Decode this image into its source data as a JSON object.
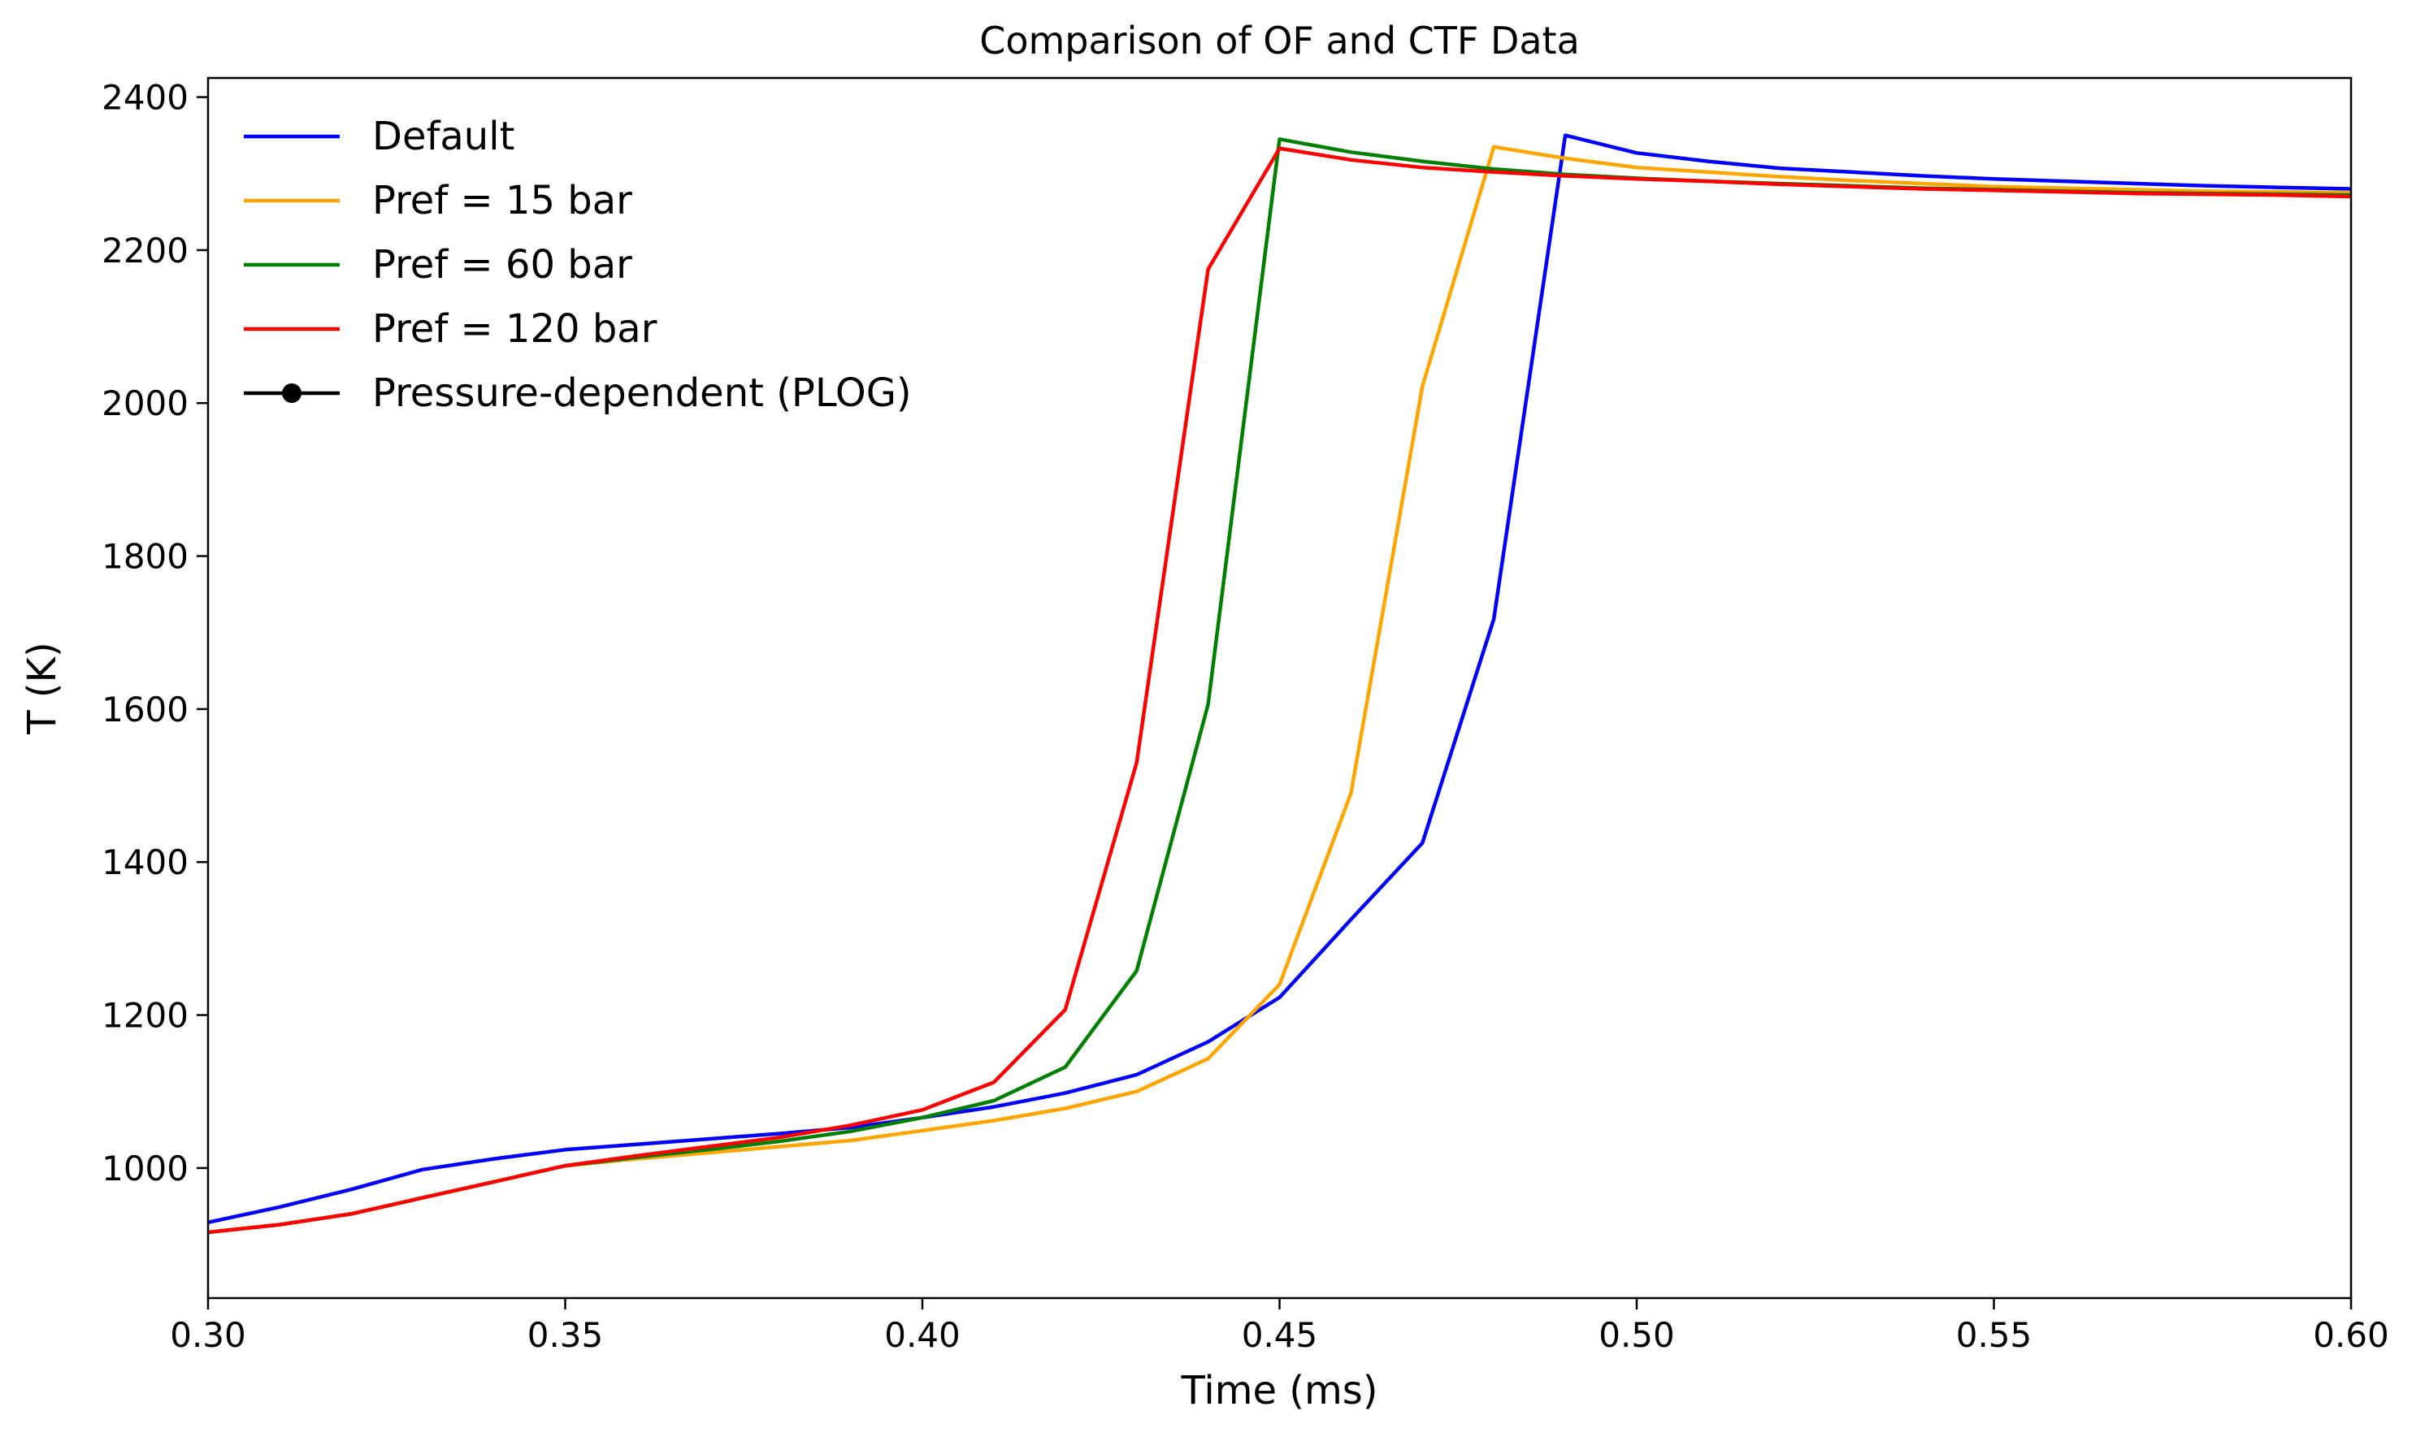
{
  "chart_data": {
    "type": "line",
    "title": "Comparison of OF and CTF Data",
    "xlabel": "Time (ms)",
    "ylabel": "T (K)",
    "xlim": [
      0.3,
      0.6
    ],
    "ylim": [
      830,
      2425
    ],
    "xticks": [
      0.3,
      0.35,
      0.4,
      0.45,
      0.5,
      0.55,
      0.6
    ],
    "xtick_labels": [
      "0.30",
      "0.35",
      "0.40",
      "0.45",
      "0.50",
      "0.55",
      "0.60"
    ],
    "yticks": [
      1000,
      1200,
      1400,
      1600,
      1800,
      2000,
      2200,
      2400
    ],
    "ytick_labels": [
      "1000",
      "1200",
      "1400",
      "1600",
      "1800",
      "2000",
      "2200",
      "2400"
    ],
    "grid": false,
    "legend_position": "top-left",
    "series": [
      {
        "name": "Default",
        "color": "#0000ff",
        "x": [
          0.3,
          0.31,
          0.32,
          0.33,
          0.34,
          0.35,
          0.36,
          0.37,
          0.38,
          0.39,
          0.4,
          0.41,
          0.42,
          0.43,
          0.44,
          0.45,
          0.46,
          0.47,
          0.48,
          0.49,
          0.5,
          0.51,
          0.52,
          0.53,
          0.54,
          0.55,
          0.56,
          0.57,
          0.58,
          0.59,
          0.6
        ],
        "y": [
          929,
          949,
          972,
          998,
          1012,
          1024,
          1031,
          1038,
          1045,
          1053,
          1066,
          1080,
          1098,
          1122,
          1165,
          1223,
          1325,
          1425,
          1718,
          2350,
          2327,
          2316,
          2307,
          2302,
          2297,
          2293,
          2290,
          2287,
          2284,
          2282,
          2280
        ]
      },
      {
        "name": "Pref = 15 bar",
        "color": "#ffa500",
        "x": [
          0.3,
          0.31,
          0.32,
          0.33,
          0.34,
          0.35,
          0.36,
          0.37,
          0.38,
          0.39,
          0.4,
          0.41,
          0.42,
          0.43,
          0.44,
          0.45,
          0.46,
          0.47,
          0.48,
          0.49,
          0.5,
          0.51,
          0.52,
          0.53,
          0.54,
          0.55,
          0.56,
          0.57,
          0.58,
          0.59,
          0.6
        ],
        "y": [
          916,
          926,
          940,
          961,
          982,
          1003,
          1012,
          1020,
          1028,
          1036,
          1049,
          1062,
          1078,
          1100,
          1143,
          1240,
          1490,
          2022,
          2335,
          2320,
          2308,
          2302,
          2296,
          2291,
          2287,
          2283,
          2281,
          2279,
          2277,
          2276,
          2275
        ]
      },
      {
        "name": "Pref = 60 bar",
        "color": "#008000",
        "x": [
          0.3,
          0.31,
          0.32,
          0.33,
          0.34,
          0.35,
          0.36,
          0.37,
          0.38,
          0.39,
          0.4,
          0.41,
          0.42,
          0.43,
          0.44,
          0.45,
          0.46,
          0.47,
          0.48,
          0.49,
          0.5,
          0.51,
          0.52,
          0.53,
          0.54,
          0.55,
          0.56,
          0.57,
          0.58,
          0.59,
          0.6
        ],
        "y": [
          916,
          926,
          940,
          961,
          982,
          1003,
          1014,
          1024,
          1035,
          1048,
          1066,
          1088,
          1132,
          1258,
          1606,
          2345,
          2328,
          2316,
          2306,
          2299,
          2294,
          2290,
          2287,
          2284,
          2281,
          2279,
          2277,
          2275,
          2274,
          2273,
          2272
        ]
      },
      {
        "name": "Pref = 120 bar",
        "color": "#ff0000",
        "x": [
          0.3,
          0.31,
          0.32,
          0.33,
          0.34,
          0.35,
          0.36,
          0.37,
          0.38,
          0.39,
          0.4,
          0.41,
          0.42,
          0.43,
          0.44,
          0.45,
          0.46,
          0.47,
          0.48,
          0.49,
          0.5,
          0.51,
          0.52,
          0.53,
          0.54,
          0.55,
          0.56,
          0.57,
          0.58,
          0.59,
          0.6
        ],
        "y": [
          916,
          926,
          940,
          961,
          982,
          1003,
          1016,
          1028,
          1040,
          1056,
          1076,
          1112,
          1207,
          1530,
          2175,
          2333,
          2318,
          2308,
          2302,
          2297,
          2293,
          2290,
          2286,
          2283,
          2280,
          2278,
          2276,
          2274,
          2273,
          2272,
          2270
        ]
      },
      {
        "name": "Pressure-dependent (PLOG)",
        "color": "#000000",
        "marker": "circle",
        "x": [],
        "y": []
      }
    ]
  }
}
